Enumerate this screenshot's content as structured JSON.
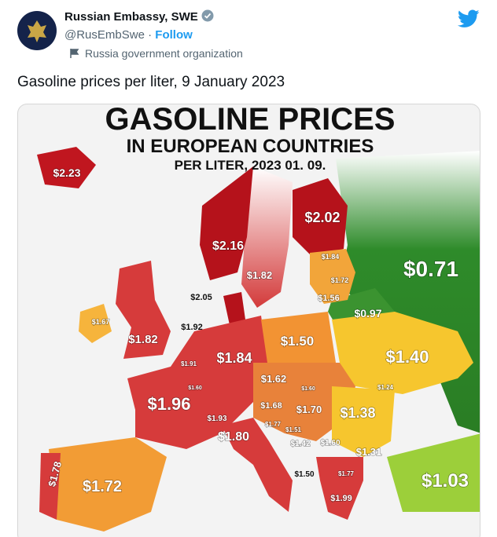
{
  "author": {
    "name": "Russian Embassy, SWE",
    "handle": "@RusEmbSwe",
    "separator": "·",
    "follow": "Follow",
    "label": "Russia government organization"
  },
  "tweet": {
    "text": "Gasoline prices per liter, 9 January 2023"
  },
  "map": {
    "title": "GASOLINE PRICES",
    "subtitle": "IN EUROPEAN COUNTRIES",
    "date": "PER LITER, 2023 01. 09.",
    "labels": [
      "$2.23",
      "$2.02",
      "$2.16",
      "$1.84",
      "$1.82",
      "$0.71",
      "$1.72",
      "$1.56",
      "$2.05",
      "$0.97",
      "$1.67",
      "$1.92",
      "$1.82",
      "$1.50",
      "$1.40",
      "$1.91",
      "$1.84",
      "$1.62",
      "$1.60",
      "$1.60",
      "$1.24",
      "$1.96",
      "$1.68",
      "$1.70",
      "$1.38",
      "$1.93",
      "$1.77",
      "$1.51",
      "$1.80",
      "$1.42",
      "$1.60",
      "$1.31",
      "$1.78",
      "$1.72",
      "$1.50",
      "$1.77",
      "$1.03",
      "$1.99"
    ]
  }
}
